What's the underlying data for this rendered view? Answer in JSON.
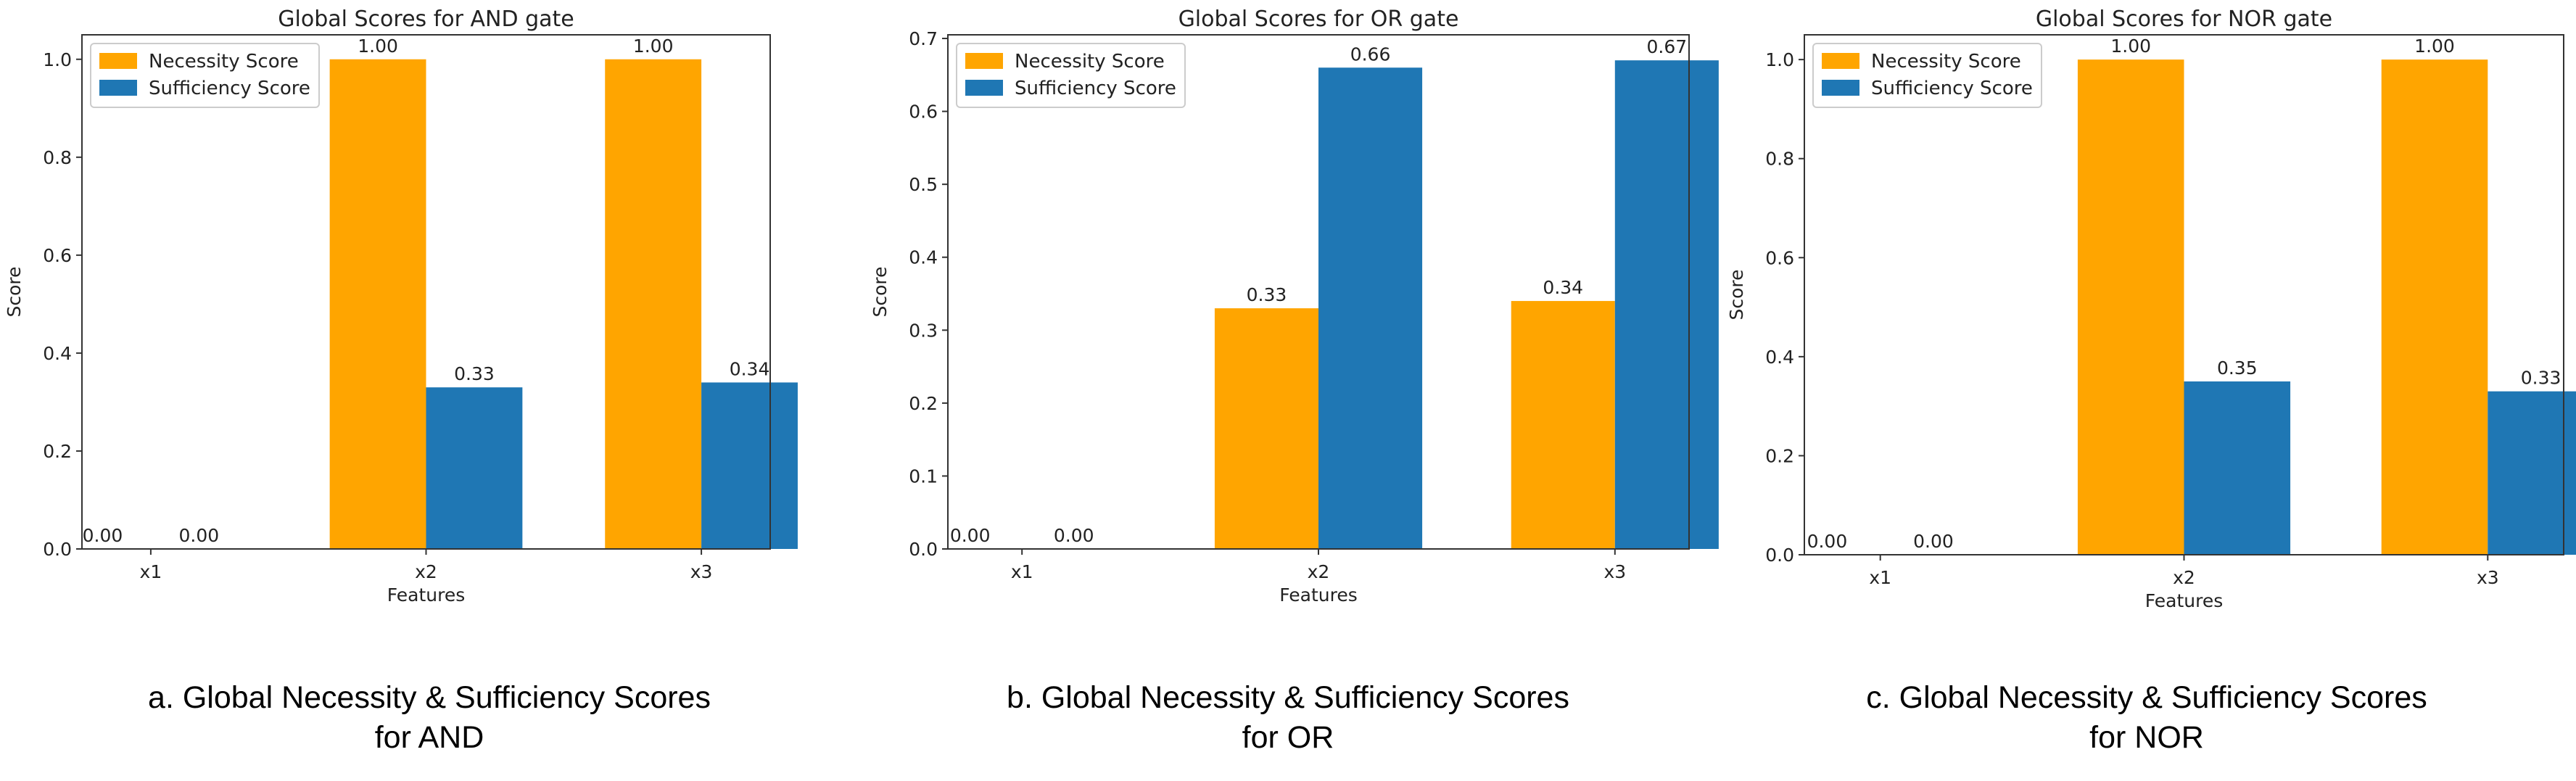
{
  "chart_data": [
    {
      "type": "bar",
      "title": "Global Scores for AND gate",
      "xlabel": "Features",
      "ylabel": "Score",
      "categories": [
        "x1",
        "x2",
        "x3"
      ],
      "ylim": [
        0,
        1.05
      ],
      "yticks": [
        "0.0",
        "0.2",
        "0.4",
        "0.6",
        "0.8",
        "1.0"
      ],
      "ytick_values": [
        0,
        0.2,
        0.4,
        0.6,
        0.8,
        1.0
      ],
      "legend_position": "top-left",
      "series": [
        {
          "name": "Necessity Score",
          "color": "#FFA500",
          "values": [
            0.0,
            1.0,
            1.0
          ],
          "labels": [
            "0.00",
            "1.00",
            "1.00"
          ]
        },
        {
          "name": "Sufficiency Score",
          "color": "#1F77B4",
          "values": [
            0.0,
            0.33,
            0.34
          ],
          "labels": [
            "0.00",
            "0.33",
            "0.34"
          ]
        }
      ],
      "caption": [
        "a. Global Necessity & Sufficiency Scores",
        "for AND"
      ]
    },
    {
      "type": "bar",
      "title": "Global Scores for OR gate",
      "xlabel": "Features",
      "ylabel": "Score",
      "categories": [
        "x1",
        "x2",
        "x3"
      ],
      "ylim": [
        0,
        0.705
      ],
      "yticks": [
        "0.0",
        "0.1",
        "0.2",
        "0.3",
        "0.4",
        "0.5",
        "0.6",
        "0.7"
      ],
      "ytick_values": [
        0,
        0.1,
        0.2,
        0.3,
        0.4,
        0.5,
        0.6,
        0.7
      ],
      "legend_position": "top-left",
      "series": [
        {
          "name": "Necessity Score",
          "color": "#FFA500",
          "values": [
            0.0,
            0.33,
            0.34
          ],
          "labels": [
            "0.00",
            "0.33",
            "0.34"
          ]
        },
        {
          "name": "Sufficiency Score",
          "color": "#1F77B4",
          "values": [
            0.0,
            0.66,
            0.67
          ],
          "labels": [
            "0.00",
            "0.66",
            "0.67"
          ]
        }
      ],
      "caption": [
        "b. Global Necessity & Sufficiency Scores",
        "for OR"
      ]
    },
    {
      "type": "bar",
      "title": "Global Scores for NOR gate",
      "xlabel": "Features",
      "ylabel": "Score",
      "categories": [
        "x1",
        "x2",
        "x3"
      ],
      "ylim": [
        0,
        1.05
      ],
      "yticks": [
        "0.0",
        "0.2",
        "0.4",
        "0.6",
        "0.8",
        "1.0"
      ],
      "ytick_values": [
        0,
        0.2,
        0.4,
        0.6,
        0.8,
        1.0
      ],
      "legend_position": "top-left",
      "series": [
        {
          "name": "Necessity Score",
          "color": "#FFA500",
          "values": [
            0.0,
            1.0,
            1.0
          ],
          "labels": [
            "0.00",
            "1.00",
            "1.00"
          ]
        },
        {
          "name": "Sufficiency Score",
          "color": "#1F77B4",
          "values": [
            0.0,
            0.35,
            0.33
          ],
          "labels": [
            "0.00",
            "0.35",
            "0.33"
          ]
        }
      ],
      "caption": [
        "c. Global Necessity & Sufficiency Scores",
        "for NOR"
      ]
    }
  ]
}
